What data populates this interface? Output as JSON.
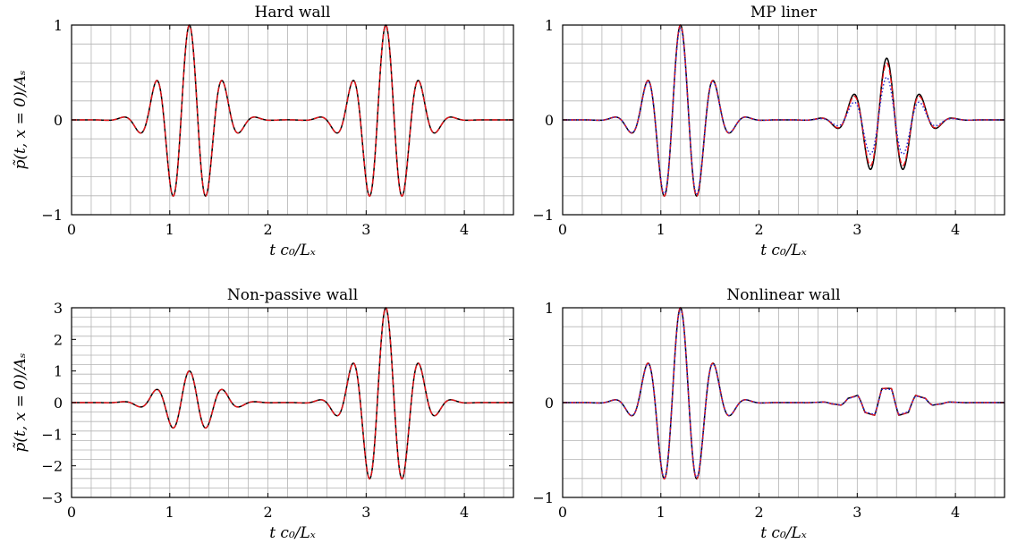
{
  "chart_data": [
    {
      "type": "line",
      "title": "Hard wall",
      "xlabel": "t c₀/Lₓ",
      "ylabel": "p̃(t, x = 0)/Aₛ",
      "xlim": [
        0,
        4.5
      ],
      "ylim": [
        -1,
        1
      ],
      "xticks": [
        "0",
        "1",
        "2",
        "3",
        "4"
      ],
      "yticks": [
        "−1",
        "0",
        "1"
      ],
      "grid": true,
      "series": [
        {
          "color": "#000000",
          "style": "solid",
          "packets": [
            {
              "center": 1.2,
              "amplitude": 1.0
            },
            {
              "center": 3.2,
              "amplitude": 1.0
            }
          ]
        },
        {
          "color": "#e8141a",
          "style": "dashed",
          "packets": [
            {
              "center": 1.2,
              "amplitude": 1.0
            },
            {
              "center": 3.2,
              "amplitude": 1.0
            }
          ]
        }
      ]
    },
    {
      "type": "line",
      "title": "MP liner",
      "xlabel": "t c₀/Lₓ",
      "ylabel": "",
      "xlim": [
        0,
        4.5
      ],
      "ylim": [
        -1,
        1
      ],
      "xticks": [
        "0",
        "1",
        "2",
        "3",
        "4"
      ],
      "yticks": [
        "−1",
        "0",
        "1"
      ],
      "grid": true,
      "series": [
        {
          "color": "#000000",
          "style": "solid",
          "packets": [
            {
              "center": 1.2,
              "amplitude": 1.0
            },
            {
              "center": 3.3,
              "amplitude": 0.65
            }
          ]
        },
        {
          "color": "#e8141a",
          "style": "dashed",
          "packets": [
            {
              "center": 1.2,
              "amplitude": 1.0
            },
            {
              "center": 3.3,
              "amplitude": 0.6
            }
          ]
        },
        {
          "color": "#2a2ad6",
          "style": "dotted",
          "packets": [
            {
              "center": 1.2,
              "amplitude": 0.97
            },
            {
              "center": 3.3,
              "amplitude": 0.45
            }
          ]
        }
      ]
    },
    {
      "type": "line",
      "title": "Non-passive wall",
      "xlabel": "t c₀/Lₓ",
      "ylabel": "p̃(t, x = 0)/Aₛ",
      "xlim": [
        0,
        4.5
      ],
      "ylim": [
        -3,
        3
      ],
      "xticks": [
        "0",
        "1",
        "2",
        "3",
        "4"
      ],
      "yticks": [
        "−3",
        "−2",
        "−1",
        "0",
        "1",
        "2",
        "3"
      ],
      "grid": true,
      "series": [
        {
          "color": "#000000",
          "style": "solid",
          "packets": [
            {
              "center": 1.2,
              "amplitude": 1.0
            },
            {
              "center": 3.2,
              "amplitude": 3.0
            }
          ]
        },
        {
          "color": "#e8141a",
          "style": "dashed",
          "packets": [
            {
              "center": 1.2,
              "amplitude": 1.0
            },
            {
              "center": 3.2,
              "amplitude": 3.0
            }
          ]
        }
      ]
    },
    {
      "type": "line",
      "title": "Nonlinear wall",
      "xlabel": "t c₀/Lₓ",
      "ylabel": "",
      "xlim": [
        0,
        4.5
      ],
      "ylim": [
        -1,
        1
      ],
      "xticks": [
        "0",
        "1",
        "2",
        "3",
        "4"
      ],
      "yticks": [
        "−1",
        "0",
        "1"
      ],
      "grid": true,
      "series": [
        {
          "color": "#000000",
          "style": "solid",
          "packets": [
            {
              "center": 1.2,
              "amplitude": 1.0
            },
            {
              "center": 3.3,
              "amplitude": 0.15,
              "clipped": true
            }
          ]
        },
        {
          "color": "#e8141a",
          "style": "dashed",
          "packets": [
            {
              "center": 1.2,
              "amplitude": 1.0
            },
            {
              "center": 3.3,
              "amplitude": 0.15,
              "clipped": true
            }
          ]
        },
        {
          "color": "#2a2ad6",
          "style": "dotted",
          "packets": [
            {
              "center": 1.2,
              "amplitude": 0.98
            },
            {
              "center": 3.3,
              "amplitude": 0.14,
              "clipped": true
            }
          ]
        }
      ]
    }
  ]
}
